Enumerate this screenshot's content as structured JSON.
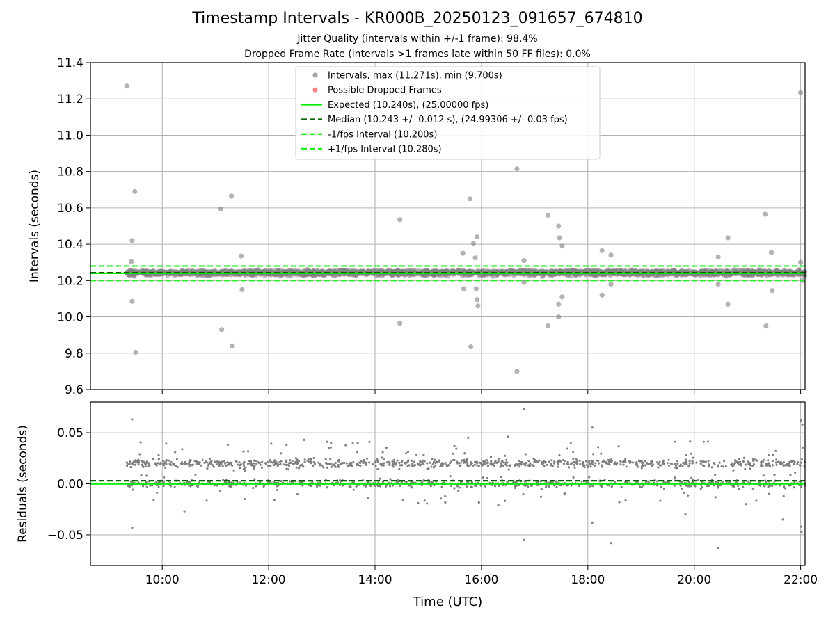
{
  "header": {
    "title": "Timestamp Intervals - KR000B_20250123_091657_674810",
    "subtitle1": "Jitter Quality (intervals within +/-1 frame): 98.4%",
    "subtitle2": "Dropped Frame Rate (intervals >1 frames late within 50 FF files): 0.0%"
  },
  "colors": {
    "points": "#808080",
    "dropped": "#ff4d4d",
    "expected": "#00ee00",
    "median": "#006400",
    "fps_band": "#22ee22",
    "grid": "#b0b0b0"
  },
  "chart_data": [
    {
      "type": "scatter",
      "panel": "top",
      "xlabel": "",
      "ylabel": "Intervals (seconds)",
      "ylim": [
        9.6,
        11.4
      ],
      "yticks": [
        "9.6",
        "9.8",
        "10.0",
        "10.2",
        "10.4",
        "10.6",
        "10.8",
        "11.0",
        "11.2",
        "11.4"
      ],
      "xlim": [
        "08:39",
        "22:05"
      ],
      "xticks": [
        "10:00",
        "12:00",
        "14:00",
        "16:00",
        "18:00",
        "20:00",
        "22:00"
      ],
      "grid": true,
      "legend_position": "upper-center",
      "legend": [
        {
          "label": "Intervals, max (11.271s), min (9.700s)",
          "kind": "marker",
          "color": "#808080"
        },
        {
          "label": "Possible Dropped Frames",
          "kind": "marker",
          "color": "#ff4d4d"
        },
        {
          "label": "Expected (10.240s), (25.00000 fps)",
          "kind": "line",
          "color": "#00ee00"
        },
        {
          "label": "Median (10.243 +/- 0.012 s), (24.99306 +/- 0.03 fps)",
          "kind": "dashed",
          "color": "#006400"
        },
        {
          "label": "-1/fps Interval (10.200s)",
          "kind": "dashed",
          "color": "#22ee22"
        },
        {
          "label": "+1/fps Interval (10.280s)",
          "kind": "dashed",
          "color": "#22ee22"
        }
      ],
      "reference_lines": {
        "expected": 10.24,
        "median": 10.243,
        "minus_fps": 10.2,
        "plus_fps": 10.28
      },
      "band": {
        "x_start": "09:20",
        "x_end": "22:05",
        "y_min": 10.22,
        "y_max": 10.266
      },
      "outliers": [
        {
          "x": "09:20",
          "y": 11.271
        },
        {
          "x": "09:25",
          "y": 10.305
        },
        {
          "x": "09:26",
          "y": 10.42
        },
        {
          "x": "09:26",
          "y": 10.085
        },
        {
          "x": "09:29",
          "y": 10.69
        },
        {
          "x": "09:30",
          "y": 9.805
        },
        {
          "x": "11:06",
          "y": 10.595
        },
        {
          "x": "11:07",
          "y": 9.93
        },
        {
          "x": "11:18",
          "y": 10.665
        },
        {
          "x": "11:19",
          "y": 9.84
        },
        {
          "x": "11:29",
          "y": 10.335
        },
        {
          "x": "11:30",
          "y": 10.15
        },
        {
          "x": "14:28",
          "y": 10.535
        },
        {
          "x": "14:28",
          "y": 9.965
        },
        {
          "x": "15:39",
          "y": 10.35
        },
        {
          "x": "15:40",
          "y": 10.155
        },
        {
          "x": "15:47",
          "y": 10.65
        },
        {
          "x": "15:48",
          "y": 9.835
        },
        {
          "x": "15:51",
          "y": 10.405
        },
        {
          "x": "15:53",
          "y": 10.325
        },
        {
          "x": "15:54",
          "y": 10.155
        },
        {
          "x": "15:55",
          "y": 10.44
        },
        {
          "x": "15:56",
          "y": 10.06
        },
        {
          "x": "15:55",
          "y": 10.095
        },
        {
          "x": "16:40",
          "y": 10.815
        },
        {
          "x": "16:40",
          "y": 9.7
        },
        {
          "x": "16:48",
          "y": 10.31
        },
        {
          "x": "16:48",
          "y": 10.19
        },
        {
          "x": "17:15",
          "y": 10.56
        },
        {
          "x": "17:15",
          "y": 9.95
        },
        {
          "x": "17:27",
          "y": 10.5
        },
        {
          "x": "17:28",
          "y": 10.435
        },
        {
          "x": "17:27",
          "y": 10.07
        },
        {
          "x": "17:27",
          "y": 10.0
        },
        {
          "x": "17:31",
          "y": 10.39
        },
        {
          "x": "17:31",
          "y": 10.11
        },
        {
          "x": "18:16",
          "y": 10.365
        },
        {
          "x": "18:16",
          "y": 10.12
        },
        {
          "x": "18:26",
          "y": 10.34
        },
        {
          "x": "18:26",
          "y": 10.18
        },
        {
          "x": "20:27",
          "y": 10.33
        },
        {
          "x": "20:27",
          "y": 10.18
        },
        {
          "x": "20:38",
          "y": 10.435
        },
        {
          "x": "20:38",
          "y": 10.07
        },
        {
          "x": "21:20",
          "y": 10.565
        },
        {
          "x": "21:21",
          "y": 9.95
        },
        {
          "x": "21:27",
          "y": 10.355
        },
        {
          "x": "21:28",
          "y": 10.145
        },
        {
          "x": "22:00",
          "y": 11.235
        },
        {
          "x": "22:00",
          "y": 10.3
        },
        {
          "x": "22:02",
          "y": 10.2
        }
      ]
    },
    {
      "type": "scatter",
      "panel": "bottom",
      "xlabel": "Time (UTC)",
      "ylabel": "Residuals (seconds)",
      "ylim": [
        -0.08,
        0.08
      ],
      "yticks": [
        "−0.05",
        "0.00",
        "0.05"
      ],
      "ytick_values": [
        -0.05,
        0.0,
        0.05
      ],
      "xticks": [
        "10:00",
        "12:00",
        "14:00",
        "16:00",
        "18:00",
        "20:00",
        "22:00"
      ],
      "grid": true,
      "reference_lines": {
        "zero": 0.0,
        "median": 0.003
      },
      "clusters": [
        {
          "label": "upper",
          "center": 0.02,
          "spread": 0.0035
        },
        {
          "label": "lower",
          "center": 0.0,
          "spread": 0.003
        }
      ],
      "outliers": [
        {
          "x": "09:26",
          "y": 0.063
        },
        {
          "x": "09:26",
          "y": -0.043
        },
        {
          "x": "16:48",
          "y": 0.073
        },
        {
          "x": "16:48",
          "y": -0.055
        },
        {
          "x": "18:05",
          "y": 0.055
        },
        {
          "x": "18:05",
          "y": -0.038
        },
        {
          "x": "18:26",
          "y": -0.058
        },
        {
          "x": "20:27",
          "y": -0.063
        },
        {
          "x": "22:00",
          "y": 0.062
        },
        {
          "x": "22:02",
          "y": 0.058
        },
        {
          "x": "22:00",
          "y": -0.042
        },
        {
          "x": "22:01",
          "y": -0.047
        },
        {
          "x": "15:45",
          "y": 0.045
        },
        {
          "x": "16:30",
          "y": 0.046
        },
        {
          "x": "12:40",
          "y": 0.043
        },
        {
          "x": "19:50",
          "y": -0.03
        },
        {
          "x": "10:25",
          "y": -0.027
        },
        {
          "x": "21:40",
          "y": -0.035
        }
      ]
    }
  ]
}
